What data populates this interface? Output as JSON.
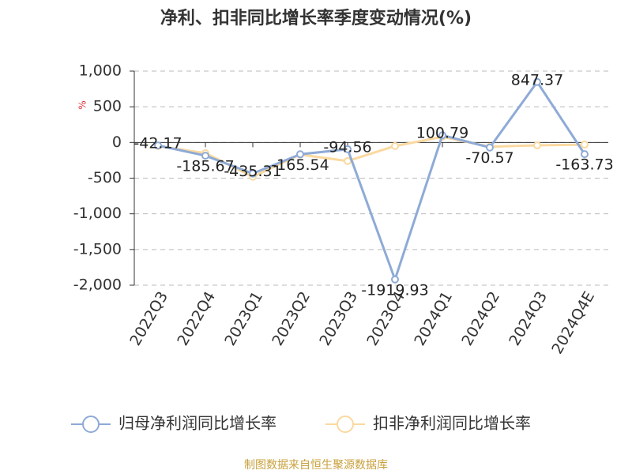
{
  "chart_data": {
    "type": "line",
    "title": "净利、扣非同比增长率季度变动情况(%)",
    "y_label": "%",
    "source": "制图数据来自恒生聚源数据库",
    "categories": [
      "2022Q3",
      "2022Q4",
      "2023Q1",
      "2023Q2",
      "2023Q3",
      "2023Q4",
      "2024Q1",
      "2024Q2",
      "2024Q3",
      "2024Q4E"
    ],
    "series": [
      {
        "name": "归母净利润同比增长率",
        "color": "#8eaad6",
        "values": [
          -42.17,
          -185.67,
          -435.31,
          -165.54,
          -94.56,
          -1919.93,
          100.79,
          -70.57,
          847.37,
          -163.73
        ]
      },
      {
        "name": "扣非净利润同比增长率",
        "color": "#fad9a0",
        "values": [
          -50,
          -150,
          -480,
          -170,
          -260,
          -50,
          80,
          -60,
          -40,
          -30
        ]
      }
    ],
    "ylim": [
      -2000,
      1000
    ],
    "yticks": [
      {
        "value": 1000,
        "label": "1,000"
      },
      500,
      0,
      -500,
      {
        "value": -1000,
        "label": "-1,000"
      },
      {
        "value": -1500,
        "label": "-1,500"
      },
      {
        "value": -2000,
        "label": "-2,000"
      }
    ],
    "grid": true
  }
}
